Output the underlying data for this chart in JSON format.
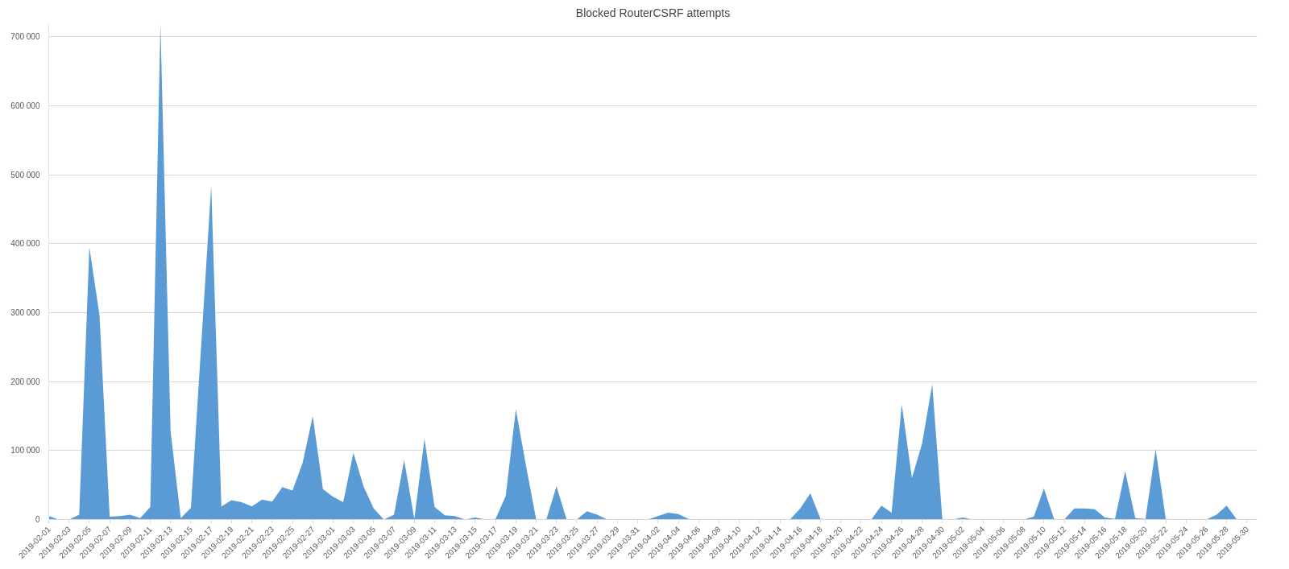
{
  "chart_data": {
    "type": "area",
    "title": "Blocked RouterCSRF attempts",
    "categories": [
      "2019-02-01",
      null,
      "2019-02-03",
      null,
      "2019-02-05",
      null,
      "2019-02-07",
      null,
      "2019-02-09",
      null,
      "2019-02-11",
      null,
      "2019-02-13",
      null,
      "2019-02-15",
      null,
      "2019-02-17",
      null,
      "2019-02-19",
      null,
      "2019-02-21",
      null,
      "2019-02-23",
      null,
      "2019-02-25",
      null,
      "2019-02-27",
      null,
      "2019-03-01",
      null,
      "2019-03-03",
      null,
      "2019-03-05",
      null,
      "2019-03-07",
      null,
      "2019-03-09",
      null,
      "2019-03-11",
      null,
      "2019-03-13",
      null,
      "2019-03-15",
      null,
      "2019-03-17",
      null,
      "2019-03-19",
      null,
      "2019-03-21",
      null,
      "2019-03-23",
      null,
      "2019-03-25",
      null,
      "2019-03-27",
      null,
      "2019-03-29",
      null,
      "2019-03-31",
      null,
      "2019-04-02",
      null,
      "2019-04-04",
      null,
      "2019-04-06",
      null,
      "2019-04-08",
      null,
      "2019-04-10",
      null,
      "2019-04-12",
      null,
      "2019-04-14",
      null,
      "2019-04-16",
      null,
      "2019-04-18",
      null,
      "2019-04-20",
      null,
      "2019-04-22",
      null,
      "2019-04-24",
      null,
      "2019-04-26",
      null,
      "2019-04-28",
      null,
      "2019-04-30",
      null,
      "2019-05-02",
      null,
      "2019-05-04",
      null,
      "2019-05-06",
      null,
      "2019-05-08",
      null,
      "2019-05-10",
      null,
      "2019-05-12",
      null,
      "2019-05-14",
      null,
      "2019-05-16",
      null,
      "2019-05-18",
      null,
      "2019-05-20",
      null,
      "2019-05-22",
      null,
      "2019-05-24",
      null,
      "2019-05-26",
      null,
      "2019-05-28",
      null,
      "2019-05-30"
    ],
    "values": [
      5000,
      0,
      0,
      7000,
      395000,
      296000,
      4000,
      5000,
      7000,
      2000,
      18000,
      719000,
      128000,
      2000,
      17000,
      250000,
      484000,
      19000,
      28000,
      25000,
      19000,
      29000,
      26000,
      47000,
      42000,
      82000,
      150000,
      44000,
      33000,
      25000,
      97000,
      48000,
      16000,
      0,
      7000,
      86000,
      1000,
      117000,
      18000,
      6000,
      5000,
      0,
      3000,
      0,
      1000,
      34000,
      160000,
      78000,
      0,
      0,
      48000,
      0,
      0,
      12000,
      7000,
      0,
      0,
      0,
      0,
      0,
      5000,
      10000,
      8000,
      1000,
      0,
      0,
      0,
      0,
      0,
      0,
      0,
      0,
      0,
      0,
      16000,
      38000,
      1000,
      0,
      0,
      0,
      0,
      0,
      20000,
      10000,
      167000,
      60000,
      110000,
      196000,
      0,
      0,
      3000,
      0,
      0,
      0,
      0,
      0,
      0,
      4000,
      45000,
      1000,
      0,
      16000,
      16000,
      15000,
      3000,
      1000,
      70000,
      2000,
      1000,
      102000,
      1000,
      0,
      0,
      0,
      0,
      7000,
      20000,
      0,
      0
    ],
    "color": "#5b9bd5",
    "ylim": [
      0,
      720000
    ],
    "yticks": [
      0,
      {
        "value": 100000,
        "label": "100 000"
      },
      {
        "value": 200000,
        "label": "200 000"
      },
      {
        "value": 300000,
        "label": "300 000"
      },
      {
        "value": 400000,
        "label": "400 000"
      },
      {
        "value": 500000,
        "label": "500 000"
      },
      {
        "value": 600000,
        "label": "600 000"
      },
      {
        "value": 700000,
        "label": "700 000"
      }
    ],
    "grid": "y"
  }
}
